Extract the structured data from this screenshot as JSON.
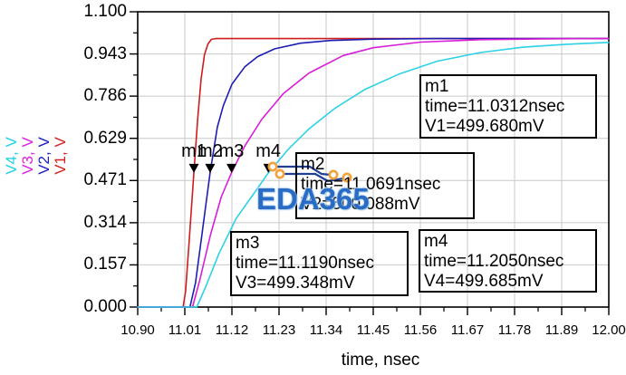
{
  "chart_data": {
    "type": "line",
    "xlabel": "time, nsec",
    "x_ticks": [
      "10.90",
      "11.01",
      "11.12",
      "11.23",
      "11.34",
      "11.45",
      "11.56",
      "11.67",
      "11.78",
      "11.89",
      "12.00"
    ],
    "y_ticks": [
      "1.100",
      "0.943",
      "0.786",
      "0.629",
      "0.471",
      "0.314",
      "0.157",
      "0.000"
    ],
    "xlim": [
      10.9,
      12.0
    ],
    "ylim": [
      0.0,
      1.1
    ],
    "grid": true,
    "grid_color": "#c9c9c9",
    "axis_color": "#000000",
    "y_axis_series_labels": [
      {
        "label": "V4, V",
        "color": "#1fd2e4"
      },
      {
        "label": "V3, V",
        "color": "#df1edf"
      },
      {
        "label": "V2, V",
        "color": "#1d1dc0"
      },
      {
        "label": "V1, V",
        "color": "#d42020"
      }
    ],
    "series": [
      {
        "name": "V1",
        "color": "#cf1d1d",
        "points": [
          [
            10.9,
            0
          ],
          [
            11.006,
            0
          ],
          [
            11.012,
            0.06
          ],
          [
            11.02,
            0.24
          ],
          [
            11.0312,
            0.5
          ],
          [
            11.04,
            0.7
          ],
          [
            11.048,
            0.85
          ],
          [
            11.056,
            0.94
          ],
          [
            11.064,
            0.98
          ],
          [
            11.072,
            0.997
          ],
          [
            11.082,
            1.0
          ],
          [
            12.0,
            1.0
          ]
        ]
      },
      {
        "name": "V2",
        "color": "#1d1db4",
        "points": [
          [
            10.9,
            0
          ],
          [
            11.022,
            0
          ],
          [
            11.035,
            0.09
          ],
          [
            11.05,
            0.27
          ],
          [
            11.0691,
            0.5
          ],
          [
            11.086,
            0.67
          ],
          [
            11.1,
            0.75
          ],
          [
            11.12,
            0.83
          ],
          [
            11.15,
            0.895
          ],
          [
            11.18,
            0.933
          ],
          [
            11.22,
            0.962
          ],
          [
            11.28,
            0.983
          ],
          [
            11.35,
            0.993
          ],
          [
            11.45,
            0.998
          ],
          [
            11.6,
            1.0
          ],
          [
            12.0,
            1.0
          ]
        ]
      },
      {
        "name": "V3",
        "color": "#d81ed8",
        "points": [
          [
            10.9,
            0
          ],
          [
            11.028,
            0
          ],
          [
            11.045,
            0.1
          ],
          [
            11.07,
            0.27
          ],
          [
            11.095,
            0.41
          ],
          [
            11.119,
            0.5
          ],
          [
            11.15,
            0.6
          ],
          [
            11.19,
            0.7
          ],
          [
            11.24,
            0.795
          ],
          [
            11.3,
            0.872
          ],
          [
            11.38,
            0.937
          ],
          [
            11.45,
            0.966
          ],
          [
            11.56,
            0.987
          ],
          [
            11.7,
            0.996
          ],
          [
            11.85,
            0.999
          ],
          [
            12.0,
            1.0
          ]
        ]
      },
      {
        "name": "V4",
        "color": "#2cd2e6",
        "points": [
          [
            10.9,
            0
          ],
          [
            11.038,
            0
          ],
          [
            11.06,
            0.08
          ],
          [
            11.09,
            0.2
          ],
          [
            11.13,
            0.33
          ],
          [
            11.17,
            0.42
          ],
          [
            11.205,
            0.5
          ],
          [
            11.25,
            0.585
          ],
          [
            11.3,
            0.664
          ],
          [
            11.36,
            0.74
          ],
          [
            11.43,
            0.81
          ],
          [
            11.51,
            0.868
          ],
          [
            11.6,
            0.916
          ],
          [
            11.7,
            0.948
          ],
          [
            11.8,
            0.968
          ],
          [
            11.9,
            0.979
          ],
          [
            12.0,
            0.986
          ]
        ]
      }
    ],
    "markers": [
      {
        "id": "m1",
        "label": "m1",
        "time_nsec": 11.0312,
        "value_v": 0.5,
        "time_text": "time=11.0312nsec",
        "value_text": "V1=499.680mV"
      },
      {
        "id": "m2",
        "label": "m2",
        "time_nsec": 11.0691,
        "value_v": 0.5,
        "time_text": "time=11.0691nsec",
        "value_text": "V2=500.088mV"
      },
      {
        "id": "m3",
        "label": "m3",
        "time_nsec": 11.119,
        "value_v": 0.5,
        "time_text": "time=11.1190nsec",
        "value_text": "V3=499.348mV"
      },
      {
        "id": "m4",
        "label": "m4",
        "time_nsec": 11.205,
        "value_v": 0.5,
        "time_text": "time=11.2050nsec",
        "value_text": "V4=499.685mV"
      }
    ]
  },
  "watermark": {
    "text": "EDA365",
    "text_color": "#2a6cc4",
    "dot_color": "#f2a23a",
    "wire_color": "#1e3f96"
  }
}
